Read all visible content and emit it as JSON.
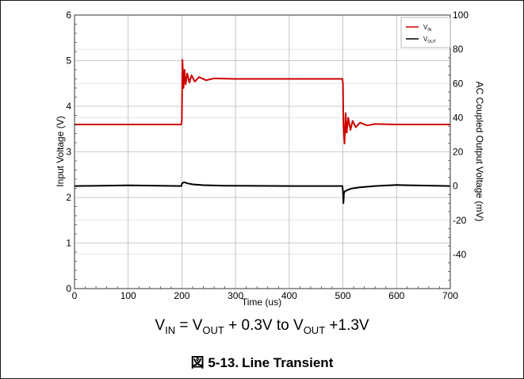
{
  "chart_data": {
    "type": "line",
    "title": "",
    "xlabel": "Time (us)",
    "ylabel_left": "Input Voltage (V)",
    "ylabel_right": "AC Coupled Output Voltage (mV)",
    "xlim": [
      0,
      700
    ],
    "ylim_left": [
      0,
      6
    ],
    "ylim_right": [
      -60,
      100
    ],
    "x_ticks": [
      0,
      100,
      200,
      300,
      400,
      500,
      600,
      700
    ],
    "y_ticks_left": [
      0,
      1,
      2,
      3,
      4,
      5,
      6
    ],
    "y_ticks_right": [
      -40,
      -20,
      0,
      20,
      40,
      60,
      80,
      100
    ],
    "grid": true,
    "legend_position": "top-right",
    "series": [
      {
        "name": "V_IN",
        "legend_main": "V",
        "legend_sub": "IN",
        "axis": "left",
        "color": "#cc0000",
        "x": [
          0,
          199,
          200,
          201,
          203,
          205,
          207,
          210,
          214,
          218,
          224,
          232,
          245,
          260,
          300,
          400,
          499,
          500,
          501,
          503,
          505,
          507,
          510,
          514,
          518,
          524,
          532,
          545,
          560,
          600,
          700
        ],
        "y": [
          3.6,
          3.6,
          3.7,
          5.02,
          4.4,
          4.8,
          4.48,
          4.72,
          4.52,
          4.68,
          4.54,
          4.64,
          4.57,
          4.61,
          4.6,
          4.6,
          4.6,
          4.5,
          3.6,
          3.18,
          3.85,
          3.42,
          3.75,
          3.48,
          3.68,
          3.54,
          3.64,
          3.58,
          3.61,
          3.6,
          3.6
        ]
      },
      {
        "name": "V_OUT",
        "legend_main": "V",
        "legend_sub": "OUT",
        "axis": "right",
        "color": "#000000",
        "x": [
          0,
          100,
          199,
          200,
          202,
          205,
          210,
          220,
          240,
          280,
          300,
          400,
          499,
          500,
          501,
          502,
          504,
          508,
          515,
          530,
          560,
          600,
          700
        ],
        "y": [
          0,
          0.4,
          0,
          1.2,
          2,
          2.2,
          1.6,
          1,
          0.5,
          0.2,
          0.2,
          0,
          0,
          -3,
          -10,
          -4,
          -3,
          -2.4,
          -1.5,
          -0.8,
          0,
          0.6,
          0
        ]
      }
    ]
  },
  "condition": {
    "v1": "V",
    "s1": "IN",
    "t1": " = V",
    "s2": "OUT",
    "t2": " + 0.3V to V",
    "s3": "OUT",
    "t3": " +1.3V"
  },
  "figure": {
    "number": "図 5-13.",
    "title": "Line Transient"
  }
}
